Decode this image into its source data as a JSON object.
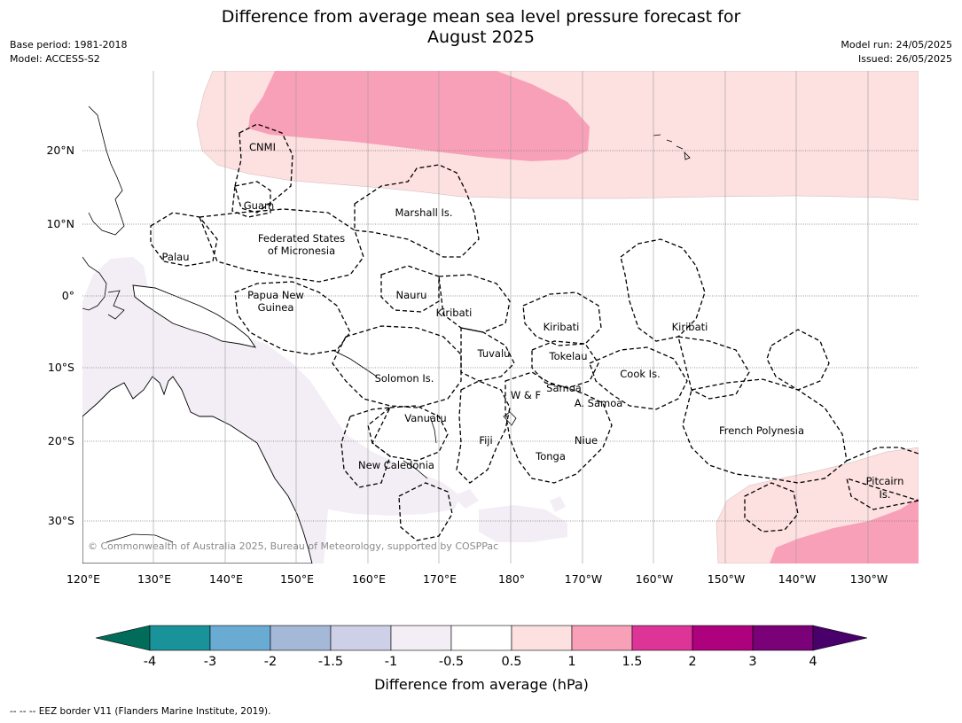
{
  "title_line1": "Difference from average mean sea level pressure forecast for",
  "title_line2": "August 2025",
  "meta": {
    "base_period": "Base period: 1981-2018",
    "model": "Model: ACCESS-S2",
    "model_run": "Model run: 24/05/2025",
    "issued": "Issued: 26/05/2025"
  },
  "lon_labels": [
    "120°E",
    "130°E",
    "140°E",
    "150°E",
    "160°E",
    "170°E",
    "180°",
    "170°W",
    "160°W",
    "150°W",
    "140°W",
    "130°W"
  ],
  "lat_labels": [
    "20°N",
    "10°N",
    "0°",
    "10°S",
    "20°S",
    "30°S"
  ],
  "countries": {
    "cnmi": "CNMI",
    "guam": "Guam",
    "marshall": "Marshall Is.",
    "fsm_1": "Federated States",
    "fsm_2": "of Micronesia",
    "palau": "Palau",
    "png_1": "Papua New",
    "png_2": "Guinea",
    "nauru": "Nauru",
    "kiribati_w": "Kiribati",
    "kiribati_c": "Kiribati",
    "kiribati_e": "Kiribati",
    "tuvalu": "Tuvalu",
    "tokelau": "Tokelau",
    "cook": "Cook Is.",
    "solomon": "Solomon Is.",
    "wf": "W & F",
    "samoa": "Samoa",
    "asamoa": "A. Samoa",
    "vanuatu": "Vanuatu",
    "fiji": "Fiji",
    "niue": "Niue",
    "fp": "French Polynesia",
    "tonga": "Tonga",
    "newcal": "New Caledonia",
    "pitcairn_1": "Pitcairn",
    "pitcairn_2": "Is."
  },
  "copyright": "© Commonwealth of Australia 2025, Bureau of Meteorology, supported by COSPPac",
  "colorbar": {
    "title": "Difference from average (hPa)",
    "ticks": [
      "-4",
      "-3",
      "-2",
      "-1.5",
      "-1",
      "-0.5",
      "0.5",
      "1",
      "1.5",
      "2",
      "3",
      "4"
    ],
    "colors": [
      "#1a9299",
      "#6aabd4",
      "#a4b8d8",
      "#cdd0e6",
      "#f3eef5",
      "#ffffff",
      "#fde0e0",
      "#f9a0b9",
      "#dd3497",
      "#ae017e",
      "#7a0177"
    ],
    "under_color": "#016c59",
    "over_color": "#49006a"
  },
  "footnote": "--  --  -- EEZ border V11 (Flanders Marine Institute, 2019)."
}
